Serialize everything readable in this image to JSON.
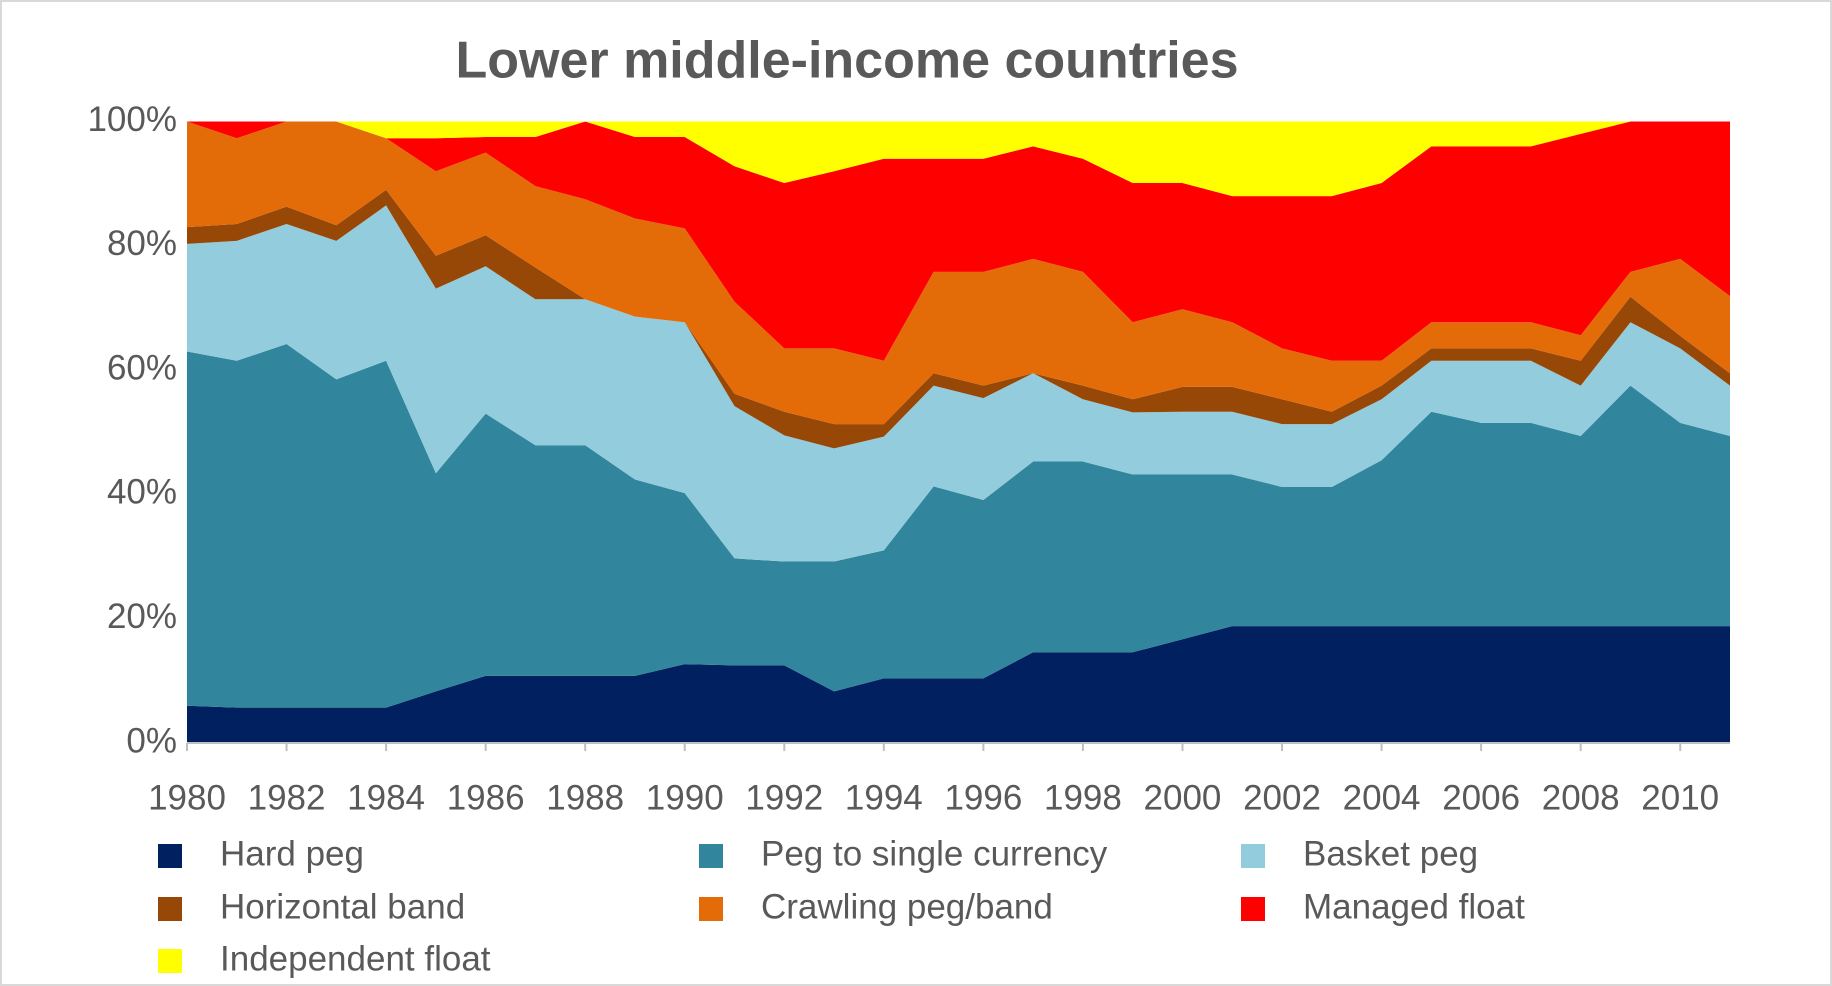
{
  "chart_data": {
    "type": "stacked-area",
    "title": "Lower middle-income countries",
    "x": [
      1980,
      1981,
      1982,
      1983,
      1984,
      1985,
      1986,
      1987,
      1988,
      1989,
      1990,
      1991,
      1992,
      1993,
      1994,
      1995,
      1996,
      1997,
      1998,
      1999,
      2000,
      2001,
      2002,
      2003,
      2004,
      2005,
      2006,
      2007,
      2008,
      2009,
      2010,
      2011
    ],
    "xlim": [
      1980,
      2011
    ],
    "xticks": [
      1980,
      1982,
      1984,
      1986,
      1988,
      1990,
      1992,
      1994,
      1996,
      1998,
      2000,
      2002,
      2004,
      2006,
      2008,
      2010
    ],
    "ylim": [
      0,
      100
    ],
    "yticks": [
      {
        "value": 0,
        "label": "0%"
      },
      {
        "value": 20,
        "label": "20%"
      },
      {
        "value": 40,
        "label": "40%"
      },
      {
        "value": 60,
        "label": "60%"
      },
      {
        "value": 80,
        "label": "80%"
      },
      {
        "value": 100,
        "label": "100%"
      }
    ],
    "grid": false,
    "series": [
      {
        "name": "Hard peg",
        "color": "#002060",
        "values": [
          6,
          5.7,
          5.7,
          5.7,
          5.7,
          8.3,
          10.8,
          10.8,
          10.8,
          10.8,
          12.7,
          12.5,
          12.5,
          8.3,
          10.4,
          10.4,
          10.4,
          14.6,
          14.6,
          14.6,
          16.7,
          18.8,
          18.8,
          18.8,
          18.8,
          18.8,
          18.8,
          18.8,
          18.8,
          18.8,
          18.8,
          18.8
        ]
      },
      {
        "name": "Peg to single currency",
        "color": "#31859c",
        "values": [
          57,
          55.8,
          58.5,
          52.8,
          55.8,
          35.1,
          42.2,
          37.1,
          37.1,
          31.6,
          27.5,
          17.2,
          16.7,
          20.9,
          20.6,
          30.9,
          28.7,
          30.7,
          30.7,
          28.6,
          26.5,
          24.4,
          22.4,
          22.4,
          26.7,
          34.5,
          32.7,
          32.7,
          30.6,
          38.7,
          32.7,
          30.6
        ]
      },
      {
        "name": "Basket peg",
        "color": "#93cddd",
        "values": [
          17.3,
          19.3,
          19.3,
          22.3,
          25,
          29.7,
          23.7,
          23.5,
          23.5,
          26.2,
          27.5,
          24.5,
          20.3,
          18.2,
          18.3,
          16.2,
          16.4,
          14.2,
          10,
          10,
          10.1,
          10.1,
          10.1,
          10.1,
          9.8,
          8.2,
          10,
          10,
          8.1,
          10.2,
          12,
          8.1
        ]
      },
      {
        "name": "Horizontal band",
        "color": "#974706",
        "values": [
          2.7,
          2.7,
          2.8,
          2.5,
          2.5,
          5.3,
          5,
          5.1,
          0,
          0,
          0,
          2,
          3.8,
          3.9,
          2,
          2,
          2,
          0,
          2.2,
          2.1,
          4,
          4,
          4,
          2,
          2.2,
          2,
          2,
          2,
          4,
          4.1,
          2,
          2
        ]
      },
      {
        "name": "Crawling peg/band",
        "color": "#e36c09",
        "values": [
          17,
          13.8,
          13.7,
          16.7,
          8.3,
          13.6,
          13.3,
          13.1,
          16.1,
          15.8,
          15.1,
          14.8,
          10.2,
          12.2,
          10.2,
          16.3,
          18.3,
          18.4,
          18.3,
          12.4,
          12.5,
          10.4,
          8.2,
          8.2,
          4,
          4.2,
          4.2,
          4.2,
          4.1,
          4,
          12.4,
          12.4
        ]
      },
      {
        "name": "Managed float",
        "color": "#ff0000",
        "values": [
          0,
          2.7,
          0,
          0,
          0,
          5.3,
          2.5,
          7.9,
          12.5,
          13.1,
          14.7,
          21.8,
          26.6,
          28.5,
          32.5,
          18.2,
          18.2,
          18.1,
          18.2,
          22.4,
          20.3,
          20.3,
          24.5,
          26.5,
          28.6,
          28.3,
          28.3,
          28.3,
          32.4,
          24.2,
          22.1,
          28.1
        ]
      },
      {
        "name": "Independent float",
        "color": "#ffff00",
        "values": [
          0,
          0,
          0,
          0,
          2.7,
          2.7,
          2.5,
          2.5,
          0,
          2.5,
          2.5,
          7.2,
          9.9,
          8,
          6,
          6,
          6,
          4,
          6,
          9.9,
          9.9,
          12,
          12,
          12,
          9.9,
          4,
          4,
          4,
          2,
          0,
          0,
          0
        ]
      }
    ]
  }
}
